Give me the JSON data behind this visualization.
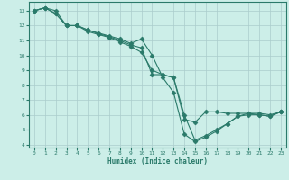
{
  "xlabel": "Humidex (Indice chaleur)",
  "bg_color": "#cceee8",
  "grid_color": "#aacccc",
  "line_color": "#2a7a6a",
  "xlim": [
    -0.5,
    23.5
  ],
  "ylim": [
    3.8,
    13.6
  ],
  "yticks": [
    4,
    5,
    6,
    7,
    8,
    9,
    10,
    11,
    12,
    13
  ],
  "xticks": [
    0,
    1,
    2,
    3,
    4,
    5,
    6,
    7,
    8,
    9,
    10,
    11,
    12,
    13,
    14,
    15,
    16,
    17,
    18,
    19,
    20,
    21,
    22,
    23
  ],
  "series1_x": [
    0,
    1,
    2,
    3,
    4,
    5,
    6,
    7,
    8,
    9,
    10,
    11,
    12,
    13,
    14,
    15,
    16,
    17,
    18,
    19,
    20,
    21,
    22,
    23
  ],
  "series1_y": [
    13.0,
    13.2,
    13.0,
    12.0,
    12.0,
    11.7,
    11.5,
    11.3,
    11.1,
    10.8,
    11.1,
    10.0,
    8.5,
    7.5,
    4.7,
    4.2,
    4.5,
    4.9,
    5.4,
    5.9,
    6.0,
    6.0,
    5.9,
    6.2
  ],
  "series2_x": [
    0,
    1,
    2,
    3,
    4,
    5,
    6,
    7,
    8,
    9,
    10,
    11,
    12,
    13,
    14,
    15,
    16,
    17,
    18,
    19,
    20,
    21,
    22,
    23
  ],
  "series2_y": [
    13.0,
    13.2,
    12.8,
    12.0,
    12.0,
    11.6,
    11.4,
    11.2,
    10.9,
    10.6,
    10.2,
    9.0,
    8.7,
    8.5,
    5.7,
    5.5,
    6.2,
    6.2,
    6.1,
    6.1,
    6.1,
    6.1,
    6.0,
    6.2
  ],
  "series3_x": [
    0,
    1,
    2,
    3,
    4,
    5,
    6,
    7,
    8,
    9,
    10,
    11,
    12,
    13,
    14,
    15,
    16,
    17,
    18,
    19,
    20,
    21,
    22,
    23
  ],
  "series3_y": [
    13.0,
    13.2,
    12.8,
    12.0,
    12.0,
    11.7,
    11.45,
    11.25,
    11.0,
    10.7,
    10.5,
    8.7,
    8.7,
    8.5,
    6.0,
    4.3,
    4.6,
    5.0,
    5.4,
    5.9,
    6.1,
    6.0,
    5.9,
    6.2
  ]
}
